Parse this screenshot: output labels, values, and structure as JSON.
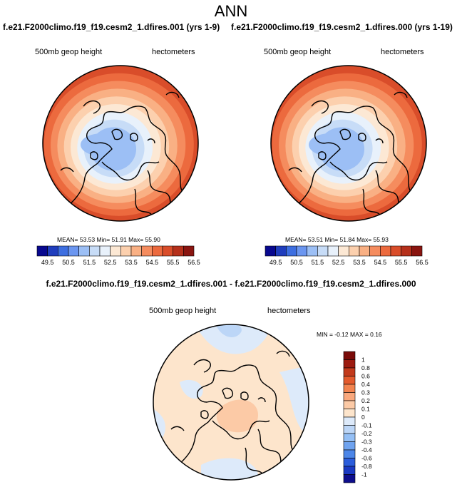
{
  "title": "ANN",
  "case_titles": [
    "f.e21.F2000climo.f19_f19.cesm2_1.dfires.001 (yrs 1-9)",
    "f.e21.F2000climo.f19_f19.cesm2_1.dfires.000 (yrs 1-19)"
  ],
  "diff_title": "f.e21.F2000climo.f19_f19.cesm2_1.dfires.001 - f.e21.F2000climo.f19_f19.cesm2_1.dfires.000",
  "colors": {
    "abs_scale": [
      "#08088f",
      "#1f3dbd",
      "#3d6ee0",
      "#6b96f0",
      "#9cbff5",
      "#c7dcf7",
      "#e8f1fb",
      "#fce8d4",
      "#fcd0ae",
      "#f9b084",
      "#f58c5e",
      "#ec6a3e",
      "#d94d2a",
      "#b5301b",
      "#8a1510"
    ],
    "diff_scale": [
      "#0d0d8c",
      "#1a39c2",
      "#2b5ddb",
      "#4c86e8",
      "#6fa3ef",
      "#94bff5",
      "#bcd6f7",
      "#ddeafa",
      "#fde5cc",
      "#fccaa6",
      "#f9a87d",
      "#f2834f",
      "#e35a2d",
      "#c23a1c",
      "#9c1b10",
      "#7a0b08"
    ]
  },
  "chart_data": [
    {
      "type": "heatmap",
      "projection": "north polar stereographic",
      "case": "f.e21.F2000climo.f19_f19.cesm2_1.dfires.001 (yrs 1-9)",
      "left_label": "500mb geop height",
      "right_label": "hectometers",
      "stats_text": "MEAN=  53.53  Min=  51.91  Max=  55.90",
      "mean": 53.53,
      "min": 51.91,
      "max": 55.9,
      "colorbar_ticks": [
        "49.5",
        "50.5",
        "51.5",
        "52.5",
        "53.5",
        "54.5",
        "55.5",
        "56.5"
      ],
      "contour_levels": [
        49.5,
        50,
        50.5,
        51,
        51.5,
        52,
        52.5,
        53,
        53.5,
        54,
        54.5,
        55,
        55.5,
        56,
        56.5
      ]
    },
    {
      "type": "heatmap",
      "projection": "north polar stereographic",
      "case": "f.e21.F2000climo.f19_f19.cesm2_1.dfires.000 (yrs 1-19)",
      "left_label": "500mb geop height",
      "right_label": "hectometers",
      "stats_text": "MEAN=  53.51  Min=  51.84  Max=  55.93",
      "mean": 53.51,
      "min": 51.84,
      "max": 55.93,
      "colorbar_ticks": [
        "49.5",
        "50.5",
        "51.5",
        "52.5",
        "53.5",
        "54.5",
        "55.5",
        "56.5"
      ],
      "contour_levels": [
        49.5,
        50,
        50.5,
        51,
        51.5,
        52,
        52.5,
        53,
        53.5,
        54,
        54.5,
        55,
        55.5,
        56,
        56.5
      ]
    },
    {
      "type": "heatmap",
      "projection": "north polar stereographic",
      "case": "difference",
      "left_label": "500mb geop height",
      "right_label": "hectometers",
      "stats_text": "MIN =  -0.12 MAX =   0.16",
      "min": -0.12,
      "max": 0.16,
      "colorbar_ticks": [
        "1",
        "0.8",
        "0.6",
        "0.4",
        "0.3",
        "0.2",
        "0.1",
        "0",
        "-0.1",
        "-0.2",
        "-0.3",
        "-0.4",
        "-0.6",
        "-0.8",
        "-1"
      ],
      "contour_levels": [
        -1,
        -0.8,
        -0.6,
        -0.4,
        -0.3,
        -0.2,
        -0.1,
        0,
        0.1,
        0.2,
        0.3,
        0.4,
        0.6,
        0.8,
        1
      ]
    }
  ]
}
